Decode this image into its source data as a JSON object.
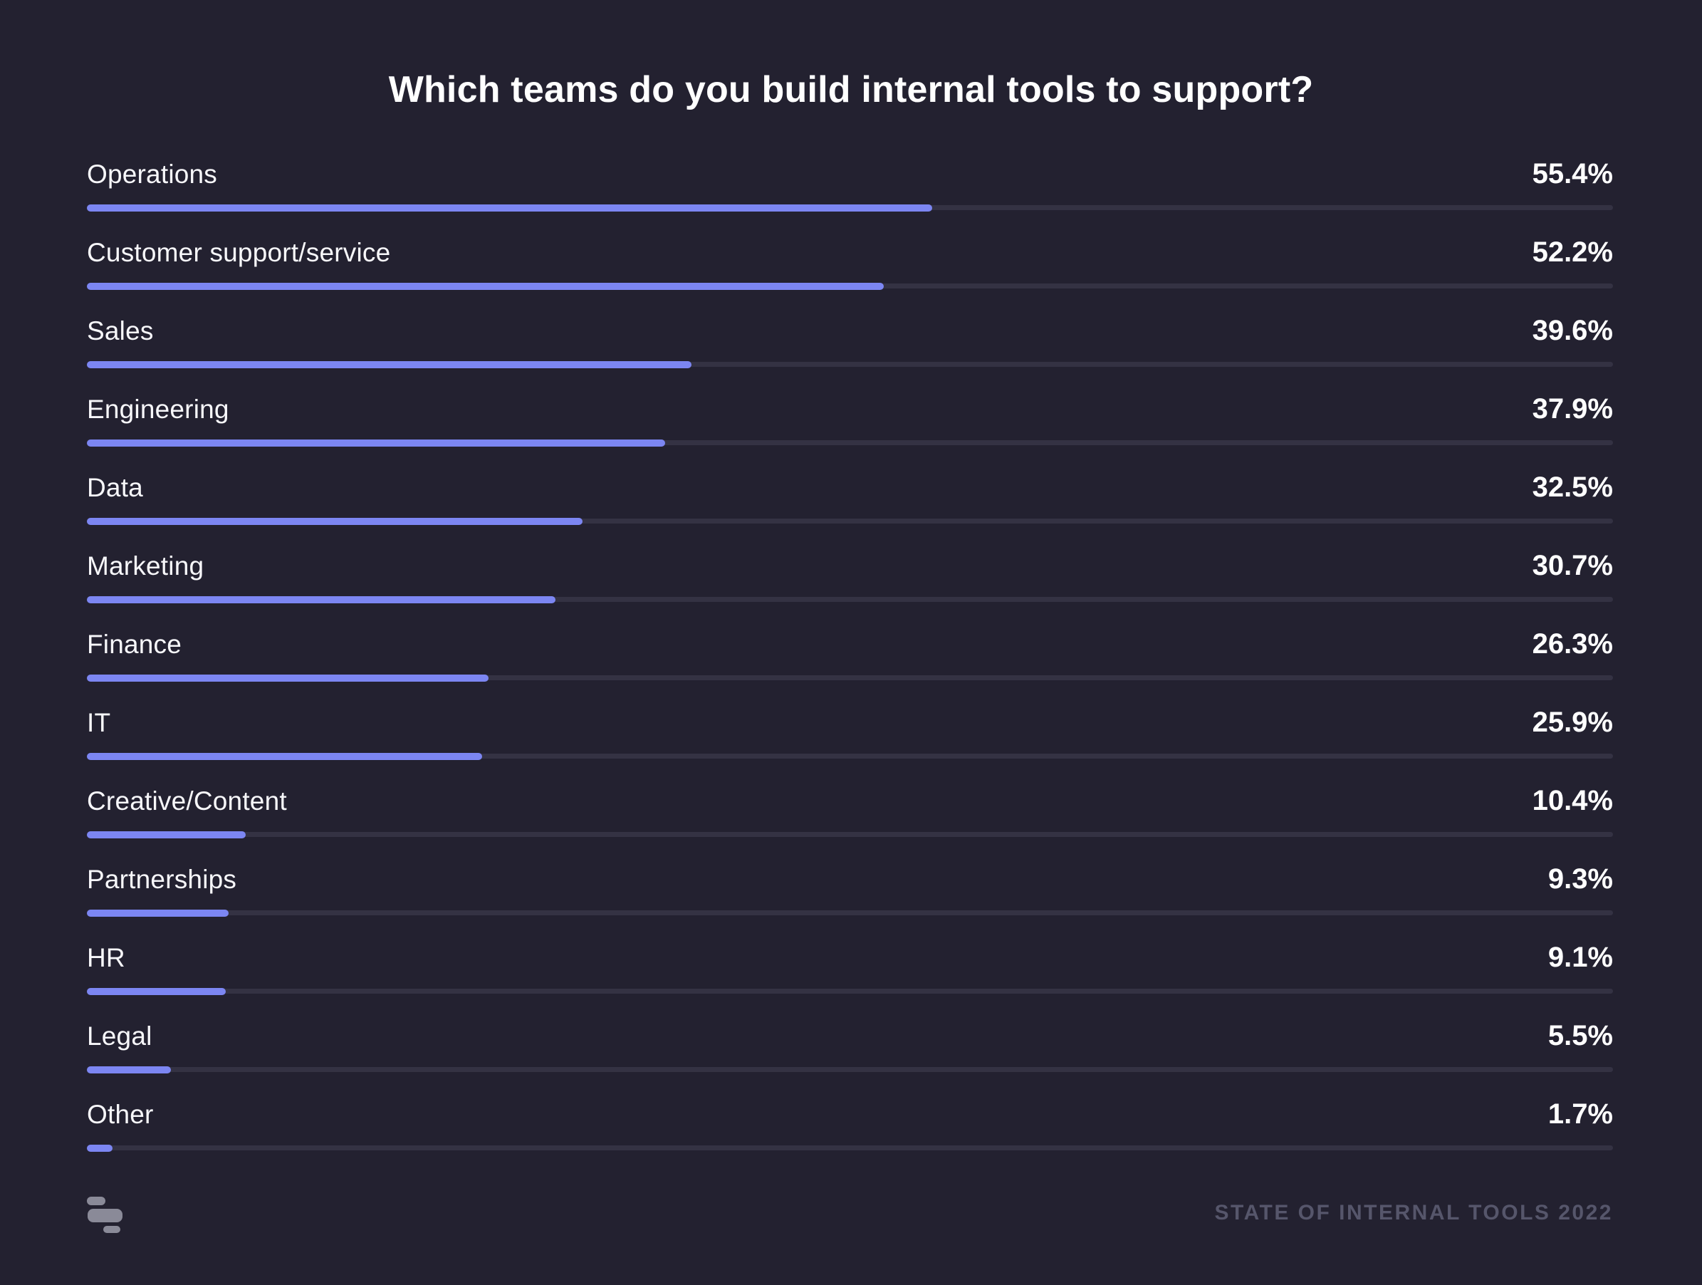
{
  "page": {
    "background_color": "#232130"
  },
  "title": "Which teams do you build internal tools to support?",
  "chart_data": {
    "type": "bar",
    "orientation": "horizontal",
    "title": "Which teams do you build internal tools to support?",
    "categories": [
      "Operations",
      "Customer support/service",
      "Sales",
      "Engineering",
      "Data",
      "Marketing",
      "Finance",
      "IT",
      "Creative/Content",
      "Partnerships",
      "HR",
      "Legal",
      "Other"
    ],
    "values": [
      55.4,
      52.2,
      39.6,
      37.9,
      32.5,
      30.7,
      26.3,
      25.9,
      10.4,
      9.3,
      9.1,
      5.5,
      1.7
    ],
    "value_suffix": "%",
    "xlim": [
      0,
      100
    ],
    "grid": false,
    "legend": false,
    "bar_color": "#7c86f2",
    "track_color": "#343243",
    "label_color": "#f7f7fa",
    "value_color": "#ffffff"
  },
  "footer": {
    "credit": "STATE OF INTERNAL TOOLS 2022",
    "logo": "retool-logo",
    "credit_color": "#56566b",
    "logo_color": "#8a8a98"
  }
}
